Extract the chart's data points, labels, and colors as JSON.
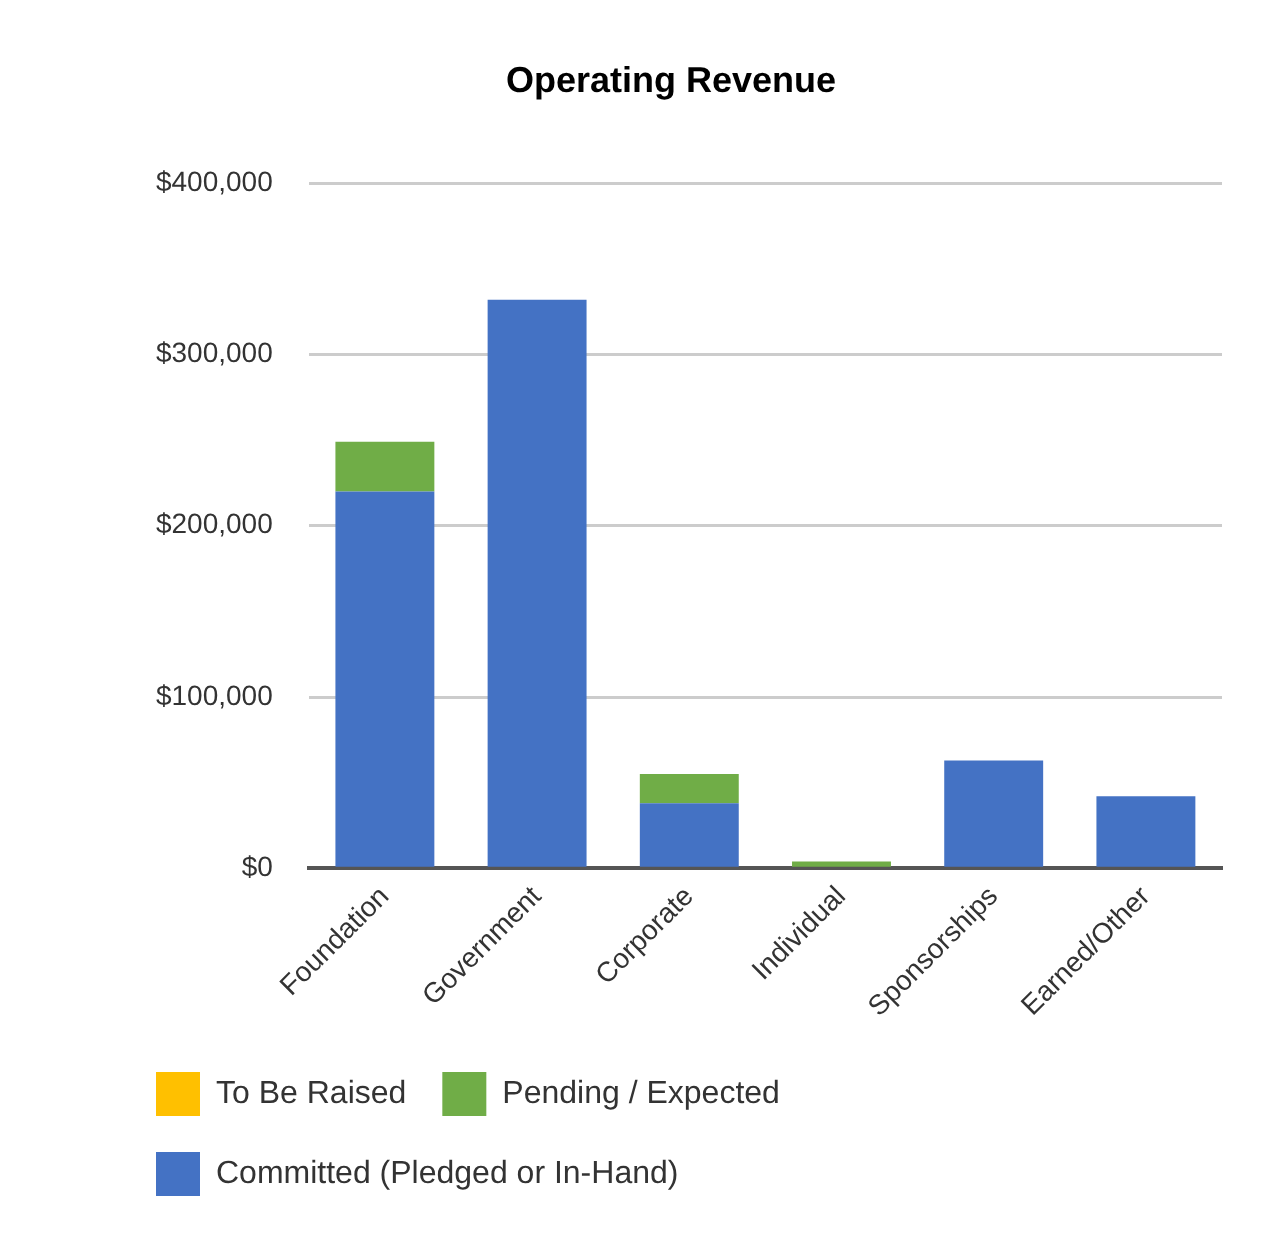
{
  "chart_data": {
    "type": "bar",
    "title": "Operating Revenue",
    "stacked": true,
    "categories": [
      "Foundation",
      "Government",
      "Corporate",
      "Individual",
      "Sponsorships",
      "Earned/Other"
    ],
    "series": [
      {
        "name": "Committed (Pledged or In-Hand)",
        "color": "#4472c4",
        "values": [
          220000,
          332000,
          38000,
          null,
          63000,
          42000
        ]
      },
      {
        "name": "Pending / Expected",
        "color": "#70ad47",
        "values": [
          29000,
          0,
          17000,
          4000,
          0,
          0
        ]
      },
      {
        "name": "To Be Raised",
        "color": "#ffc000",
        "values": [
          0,
          0,
          0,
          0,
          0,
          0
        ]
      }
    ],
    "ylim": [
      0,
      400000
    ],
    "yticks": [
      {
        "value": 0,
        "label": "$0"
      },
      {
        "value": 100000,
        "label": "$100,000"
      },
      {
        "value": 200000,
        "label": "$200,000"
      },
      {
        "value": 300000,
        "label": "$300,000"
      },
      {
        "value": 400000,
        "label": "$400,000"
      }
    ],
    "grid": "y",
    "legend": "bottom"
  }
}
